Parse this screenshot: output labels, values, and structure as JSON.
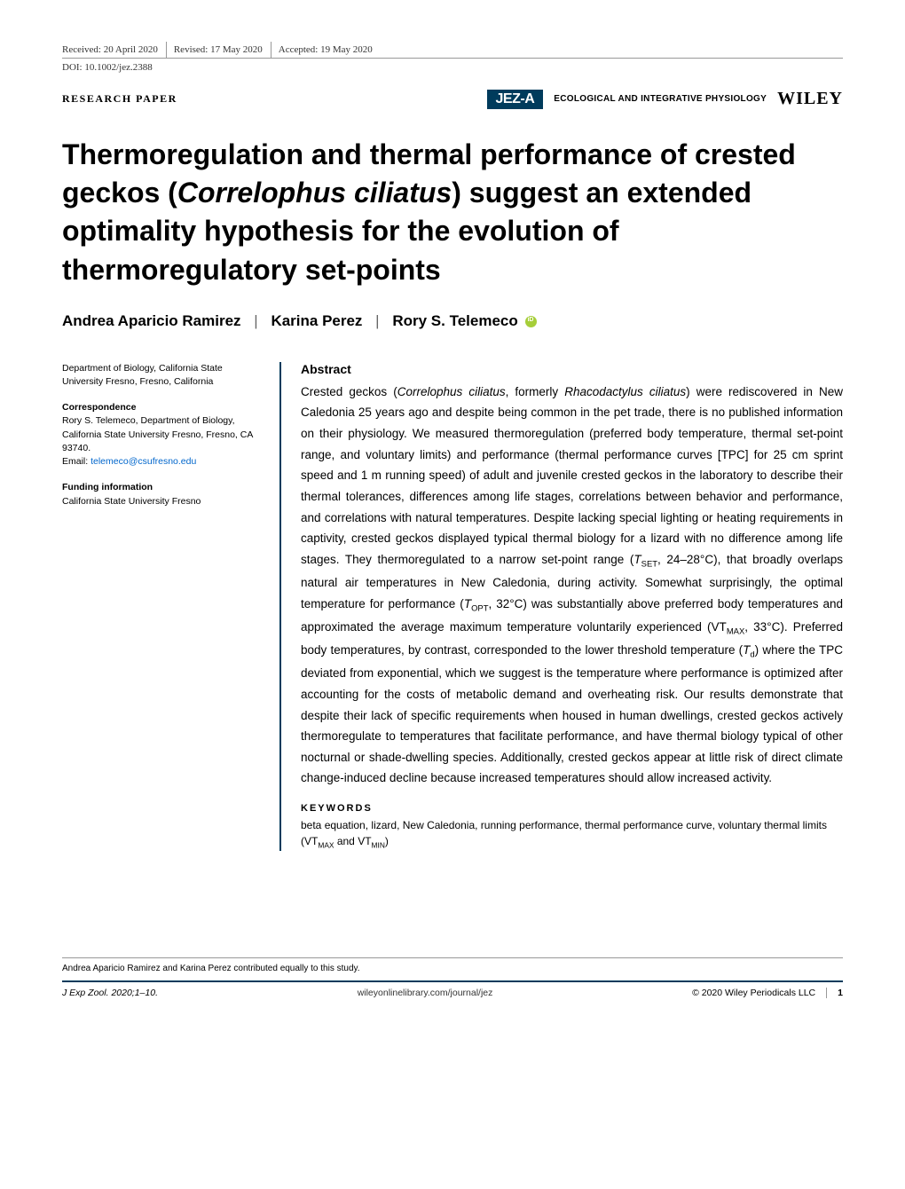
{
  "meta": {
    "received": "Received: 20 April 2020",
    "revised": "Revised: 17 May 2020",
    "accepted": "Accepted: 19 May 2020",
    "doi": "DOI: 10.1002/jez.2388"
  },
  "category": "RESEARCH PAPER",
  "branding": {
    "jez": "JEZ-A",
    "jez_sub": "ECOLOGICAL AND INTEGRATIVE PHYSIOLOGY",
    "wiley": "WILEY"
  },
  "title_html": "Thermoregulation and thermal performance of crested geckos (<em>Correlophus ciliatus</em>) suggest an extended optimality hypothesis for the evolution of thermoregulatory set-points",
  "authors": {
    "a1": "Andrea Aparicio Ramirez",
    "a2": "Karina Perez",
    "a3": "Rory S. Telemeco"
  },
  "affiliation": "Department of Biology, California State University Fresno, Fresno, California",
  "correspondence": {
    "label": "Correspondence",
    "body": "Rory S. Telemeco, Department of Biology, California State University Fresno, Fresno, CA 93740.",
    "email_label": "Email: ",
    "email": "telemeco@csufresno.edu"
  },
  "funding": {
    "label": "Funding information",
    "body": "California State University Fresno"
  },
  "abstract": {
    "heading": "Abstract",
    "body_html": "Crested geckos (<em>Correlophus ciliatus</em>, formerly <em>Rhacodactylus ciliatus</em>) were rediscovered in New Caledonia 25 years ago and despite being common in the pet trade, there is no published information on their physiology. We measured thermoregulation (preferred body temperature, thermal set-point range, and voluntary limits) and performance (thermal performance curves [TPC] for 25 cm sprint speed and 1 m running speed) of adult and juvenile crested geckos in the laboratory to describe their thermal tolerances, differences among life stages, correlations between behavior and performance, and correlations with natural temperatures. Despite lacking special lighting or heating requirements in captivity, crested geckos displayed typical thermal biology for a lizard with no difference among life stages. They thermoregulated to a narrow set-point range (<em>T</em><sub>SET</sub>, 24–28°C), that broadly overlaps natural air temperatures in New Caledonia, during activity. Somewhat surprisingly, the optimal temperature for performance (<em>T</em><sub>OPT</sub>, 32°C) was substantially above preferred body temperatures and approximated the average maximum temperature voluntarily experienced (VT<sub>MAX</sub>, 33°C). Preferred body temperatures, by contrast, corresponded to the lower threshold temperature (<em>T</em><sub>d</sub>) where the TPC deviated from exponential, which we suggest is the temperature where performance is optimized after accounting for the costs of metabolic demand and overheating risk. Our results demonstrate that despite their lack of specific requirements when housed in human dwellings, crested geckos actively thermoregulate to temperatures that facilitate performance, and have thermal biology typical of other nocturnal or shade-dwelling species. Additionally, crested geckos appear at little risk of direct climate change-induced decline because increased temperatures should allow increased activity."
  },
  "keywords": {
    "heading": "KEYWORDS",
    "body_html": "beta equation, lizard, New Caledonia, running performance, thermal performance curve, voluntary thermal limits (VT<sub>MAX</sub> and VT<sub>MIN</sub>)"
  },
  "footnote": "Andrea Aparicio Ramirez and Karina Perez contributed equally to this study.",
  "footer": {
    "citation": "J Exp Zool. 2020;1–10.",
    "url": "wileyonlinelibrary.com/journal/jez",
    "copyright": "© 2020 Wiley Periodicals LLC",
    "page": "1"
  }
}
